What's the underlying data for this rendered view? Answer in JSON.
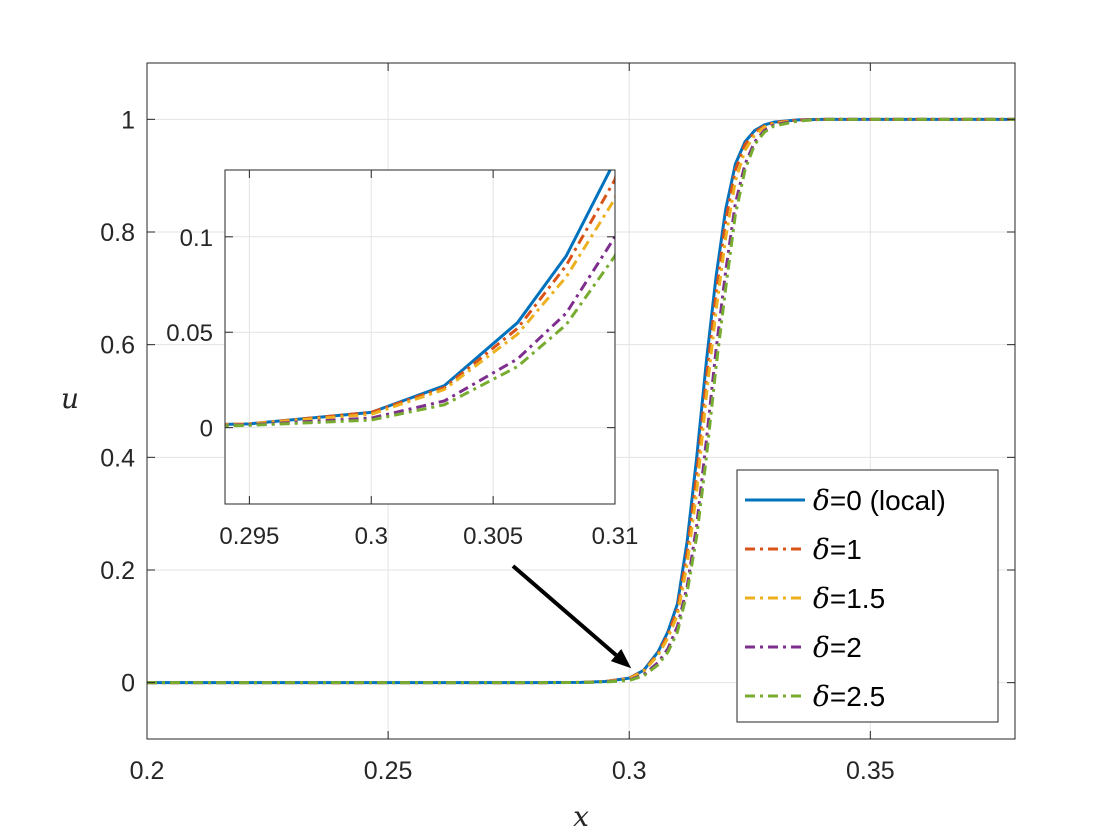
{
  "chart_data": {
    "type": "line",
    "title": "",
    "xlabel": "x",
    "ylabel": "u",
    "xlim": [
      0.2,
      0.38
    ],
    "ylim": [
      -0.1,
      1.1
    ],
    "xticks": [
      0.2,
      0.25,
      0.3,
      0.35
    ],
    "xtick_labels": [
      "0.2",
      "0.25",
      "0.3",
      "0.35"
    ],
    "yticks": [
      0,
      0.2,
      0.4,
      0.6,
      0.8,
      1
    ],
    "ytick_labels": [
      "0",
      "0.2",
      "0.4",
      "0.6",
      "0.8",
      "1"
    ],
    "grid": true,
    "legend_position": "bottom-right",
    "series": [
      {
        "name": "δ=0 (local)",
        "legend_symbol": "δ",
        "legend_rest": "=0 (local)",
        "color": "#0072BD",
        "dash": "solid",
        "x": [
          0.2,
          0.25,
          0.28,
          0.29,
          0.295,
          0.3,
          0.303,
          0.306,
          0.308,
          0.31,
          0.312,
          0.314,
          0.316,
          0.318,
          0.32,
          0.322,
          0.324,
          0.326,
          0.328,
          0.33,
          0.335,
          0.34,
          0.35,
          0.38
        ],
        "y": [
          0,
          0,
          0,
          0.0005,
          0.002,
          0.008,
          0.022,
          0.055,
          0.09,
          0.14,
          0.25,
          0.4,
          0.57,
          0.72,
          0.84,
          0.92,
          0.96,
          0.98,
          0.99,
          0.995,
          0.999,
          1,
          1,
          1
        ]
      },
      {
        "name": "δ=1",
        "legend_symbol": "δ",
        "legend_rest": "=1",
        "color": "#D95319",
        "dash": "dashdot",
        "x": [
          0.2,
          0.25,
          0.28,
          0.29,
          0.295,
          0.3,
          0.303,
          0.306,
          0.308,
          0.31,
          0.312,
          0.314,
          0.316,
          0.318,
          0.32,
          0.322,
          0.324,
          0.326,
          0.328,
          0.33,
          0.335,
          0.34,
          0.35,
          0.38
        ],
        "y": [
          0,
          0,
          0,
          0.0005,
          0.002,
          0.008,
          0.021,
          0.052,
          0.085,
          0.13,
          0.23,
          0.37,
          0.54,
          0.69,
          0.82,
          0.91,
          0.955,
          0.977,
          0.988,
          0.994,
          0.999,
          1,
          1,
          1
        ]
      },
      {
        "name": "δ=1.5",
        "legend_symbol": "δ",
        "legend_rest": "=1.5",
        "color": "#EDB120",
        "dash": "dashdot",
        "x": [
          0.2,
          0.25,
          0.28,
          0.29,
          0.295,
          0.3,
          0.303,
          0.306,
          0.308,
          0.31,
          0.312,
          0.314,
          0.316,
          0.318,
          0.32,
          0.322,
          0.324,
          0.326,
          0.328,
          0.33,
          0.335,
          0.34,
          0.35,
          0.38
        ],
        "y": [
          0,
          0,
          0,
          0.0005,
          0.002,
          0.007,
          0.02,
          0.049,
          0.079,
          0.12,
          0.21,
          0.34,
          0.51,
          0.66,
          0.79,
          0.89,
          0.945,
          0.972,
          0.986,
          0.993,
          0.998,
          1,
          1,
          1
        ]
      },
      {
        "name": "δ=2",
        "legend_symbol": "δ",
        "legend_rest": "=2",
        "color": "#7E2F8E",
        "dash": "dashdot",
        "x": [
          0.2,
          0.25,
          0.28,
          0.29,
          0.295,
          0.3,
          0.303,
          0.306,
          0.308,
          0.31,
          0.312,
          0.314,
          0.316,
          0.318,
          0.32,
          0.322,
          0.324,
          0.326,
          0.328,
          0.33,
          0.335,
          0.34,
          0.35,
          0.38
        ],
        "y": [
          0,
          0,
          0,
          0.0004,
          0.0015,
          0.005,
          0.014,
          0.036,
          0.06,
          0.1,
          0.17,
          0.28,
          0.43,
          0.59,
          0.73,
          0.85,
          0.92,
          0.96,
          0.98,
          0.99,
          0.998,
          1,
          1,
          1
        ]
      },
      {
        "name": "δ=2.5",
        "legend_symbol": "δ",
        "legend_rest": "=2.5",
        "color": "#77AC30",
        "dash": "dashdot",
        "x": [
          0.2,
          0.25,
          0.28,
          0.29,
          0.295,
          0.3,
          0.303,
          0.306,
          0.308,
          0.31,
          0.312,
          0.314,
          0.316,
          0.318,
          0.32,
          0.322,
          0.324,
          0.326,
          0.328,
          0.33,
          0.335,
          0.34,
          0.35,
          0.38
        ],
        "y": [
          0,
          0,
          0,
          0.0003,
          0.0012,
          0.004,
          0.012,
          0.032,
          0.054,
          0.09,
          0.16,
          0.26,
          0.4,
          0.56,
          0.7,
          0.83,
          0.91,
          0.955,
          0.977,
          0.988,
          0.997,
          1,
          1,
          1
        ]
      }
    ],
    "inset": {
      "xlim": [
        0.294,
        0.31
      ],
      "ylim": [
        -0.04,
        0.135
      ],
      "xticks": [
        0.295,
        0.3,
        0.305,
        0.31
      ],
      "xtick_labels": [
        "0.295",
        "0.3",
        "0.305",
        "0.31"
      ],
      "yticks": [
        0,
        0.05,
        0.1
      ],
      "ytick_labels": [
        "0",
        "0.05",
        "0.1"
      ],
      "grid": true
    },
    "annotation": {
      "type": "arrow",
      "points_to": [
        0.3,
        0.008
      ]
    }
  }
}
